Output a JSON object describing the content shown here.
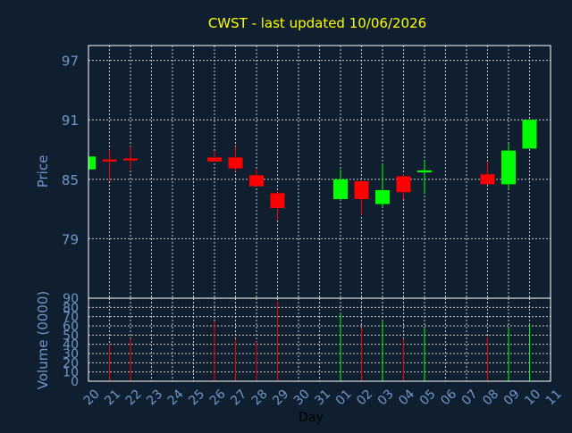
{
  "chart_data": {
    "type": "candlestick",
    "title": "CWST - last updated 10/06/2026",
    "xlabel": "Day",
    "price_panel": {
      "ylabel": "Price",
      "yticks": [
        "79",
        "85",
        "91",
        "97"
      ],
      "ylim": [
        73,
        98.5
      ],
      "grid": true
    },
    "volume_panel": {
      "ylabel": "Volume (0000)",
      "yticks": [
        "0",
        "10",
        "20",
        "30",
        "40",
        "50",
        "60",
        "70",
        "80",
        "90"
      ],
      "ylim": [
        0,
        90
      ],
      "grid": true
    },
    "x_ticks": [
      "20",
      "21",
      "22",
      "23",
      "24",
      "25",
      "26",
      "27",
      "28",
      "29",
      "30",
      "31",
      "01",
      "02",
      "03",
      "04",
      "05",
      "06",
      "07",
      "08",
      "09",
      "10",
      "11"
    ],
    "candles": [
      {
        "x": "20",
        "open": 86.0,
        "high": 87.5,
        "low": 86.0,
        "close": 87.3,
        "volume": 0
      },
      {
        "x": "21",
        "open": 87.0,
        "high": 88.0,
        "low": 84.8,
        "close": 86.8,
        "volume": 40
      },
      {
        "x": "22",
        "open": 87.1,
        "high": 88.3,
        "low": 86.0,
        "close": 86.9,
        "volume": 46
      },
      {
        "x": "26",
        "open": 87.2,
        "high": 87.8,
        "low": 86.8,
        "close": 86.8,
        "volume": 65
      },
      {
        "x": "27",
        "open": 87.2,
        "high": 88.3,
        "low": 85.8,
        "close": 86.1,
        "volume": 46
      },
      {
        "x": "28",
        "open": 85.4,
        "high": 86.0,
        "low": 84.3,
        "close": 84.3,
        "volume": 43
      },
      {
        "x": "29",
        "open": 83.6,
        "high": 83.8,
        "low": 80.9,
        "close": 82.1,
        "volume": 86
      },
      {
        "x": "01",
        "open": 83.0,
        "high": 86.0,
        "low": 82.9,
        "close": 85.0,
        "volume": 74
      },
      {
        "x": "02",
        "open": 84.8,
        "high": 84.9,
        "low": 81.4,
        "close": 83.0,
        "volume": 58
      },
      {
        "x": "03",
        "open": 82.5,
        "high": 86.6,
        "low": 82.2,
        "close": 83.9,
        "volume": 66
      },
      {
        "x": "04",
        "open": 85.3,
        "high": 85.5,
        "low": 83.0,
        "close": 83.7,
        "volume": 46
      },
      {
        "x": "05",
        "open": 85.7,
        "high": 86.9,
        "low": 83.5,
        "close": 85.9,
        "volume": 58
      },
      {
        "x": "08",
        "open": 85.5,
        "high": 86.8,
        "low": 84.5,
        "close": 84.5,
        "volume": 48
      },
      {
        "x": "09",
        "open": 84.5,
        "high": 88.6,
        "low": 84.0,
        "close": 87.9,
        "volume": 58
      },
      {
        "x": "10",
        "open": 88.1,
        "high": 91.0,
        "low": 88.1,
        "close": 91.0,
        "volume": 62
      }
    ],
    "colors": {
      "background": "#0f1f30",
      "up": "#00ff00",
      "down": "#ff0000",
      "title": "#ffff00",
      "axis_text": "#6f97c8",
      "frame": "#ffffff",
      "grid": "#c8c8c8"
    }
  }
}
